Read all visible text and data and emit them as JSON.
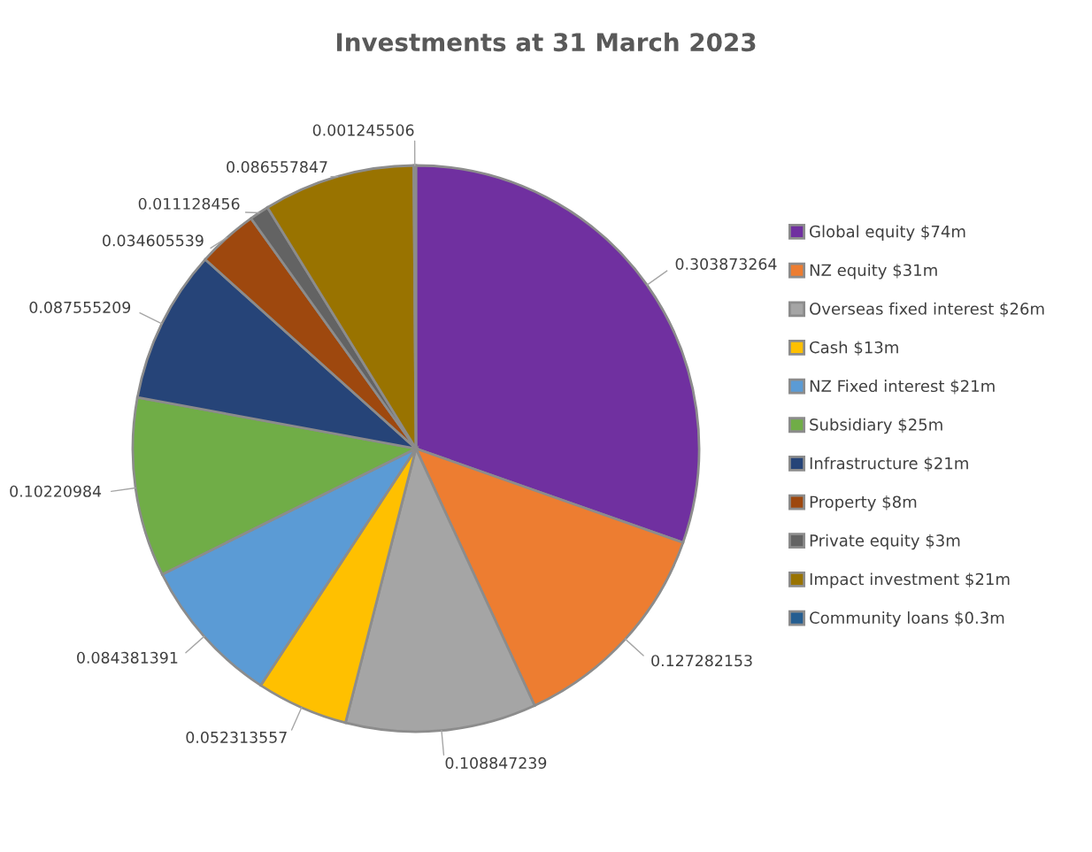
{
  "chart_data": {
    "type": "pie",
    "title": "Investments at 31 March 2023",
    "categories": [
      "Global equity $74m",
      "NZ equity $31m",
      "Overseas fixed interest $26m",
      "Cash $13m",
      "NZ Fixed interest $21m",
      "Subsidiary $25m",
      "Infrastructure $21m",
      "Property $8m",
      "Private equity $3m",
      "Impact investment $21m",
      "Community loans $0.3m"
    ],
    "values": [
      0.303873264,
      0.127282153,
      0.108847239,
      0.052313557,
      0.084381391,
      0.10220984,
      0.087555209,
      0.034605539,
      0.011128456,
      0.086557847,
      0.001245506
    ],
    "colors": [
      "#7030a0",
      "#ed7d31",
      "#a5a5a5",
      "#ffc000",
      "#5b9bd5",
      "#70ad47",
      "#264478",
      "#9e480e",
      "#636363",
      "#997300",
      "#255e91"
    ],
    "data_labels": true,
    "legend": "right"
  }
}
